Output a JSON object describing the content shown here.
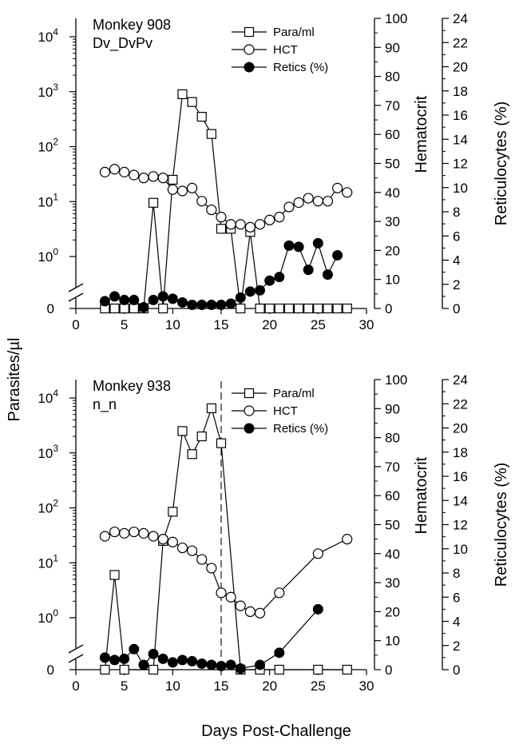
{
  "figure": {
    "ylabel_left": "Parasites/µl",
    "xlabel": "Days Post-Challenge",
    "ylabel_hct": "Hematocrit",
    "ylabel_retic": "Reticulocytes (%)"
  },
  "chart_data": [
    {
      "type": "line",
      "title": "Monkey 908",
      "subtitle": "Dv_DvPv",
      "xlabel": "Days Post-Challenge",
      "ylabel": "Parasites/µl",
      "y2label": "Hematocrit",
      "y3label": "Reticulocytes (%)",
      "xlim": [
        0,
        30
      ],
      "xticks": [
        "0",
        "5",
        "10",
        "15",
        "20",
        "25",
        "30"
      ],
      "ylog_ticks": [
        "10^0",
        "10^1",
        "10^2",
        "10^3",
        "10^4"
      ],
      "ylim_log_exponent": [
        0,
        4
      ],
      "y_zero_label": "0",
      "y2lim": [
        0,
        100
      ],
      "y2ticks": [
        "0",
        "10",
        "20",
        "30",
        "40",
        "50",
        "60",
        "70",
        "80",
        "90",
        "100"
      ],
      "y3lim": [
        0,
        24
      ],
      "y3ticks": [
        "0",
        "2",
        "4",
        "6",
        "8",
        "10",
        "12",
        "14",
        "16",
        "18",
        "20",
        "22",
        "24"
      ],
      "legend_position": "top-right",
      "series": [
        {
          "name": "Para/ml",
          "axis": "parasites",
          "marker": "open-square",
          "x": [
            3,
            4,
            5,
            6,
            7,
            8,
            9,
            10,
            11,
            12,
            13,
            14,
            15,
            16,
            17,
            18,
            19,
            20,
            21,
            22,
            23,
            24,
            25,
            26,
            27,
            28
          ],
          "y": [
            0,
            0,
            0,
            0,
            0,
            9.5,
            0,
            25,
            900,
            650,
            350,
            170,
            3.2,
            3.2,
            0,
            2.8,
            0,
            0,
            0,
            0,
            0,
            0,
            0,
            0,
            0,
            0
          ]
        },
        {
          "name": "HCT",
          "axis": "hematocrit",
          "marker": "open-circle",
          "x": [
            3,
            4,
            5,
            6,
            7,
            8,
            9,
            10,
            11,
            12,
            13,
            14,
            15,
            16,
            17,
            18,
            19,
            20,
            21,
            22,
            23,
            24,
            25,
            26,
            27,
            28
          ],
          "y": [
            47,
            48,
            47,
            46,
            45,
            45.5,
            45,
            41,
            40.5,
            41.5,
            37,
            34,
            31.5,
            29,
            29,
            28,
            29,
            30.5,
            31.5,
            35,
            36.5,
            38,
            37,
            37,
            41.5,
            40
          ]
        },
        {
          "name": "Retics (%)",
          "axis": "reticulocytes",
          "marker": "filled-circle",
          "x": [
            3,
            4,
            5,
            6,
            7,
            8,
            9,
            10,
            11,
            12,
            13,
            14,
            15,
            16,
            17,
            18,
            19,
            20,
            21,
            22,
            23,
            24,
            25,
            26,
            27,
            28
          ],
          "y": [
            0.6,
            1.0,
            0.7,
            0.7,
            0.1,
            0.7,
            1.0,
            0.8,
            0.5,
            0.3,
            0.3,
            0.3,
            0.3,
            0.4,
            0.9,
            1.4,
            1.5,
            2.3,
            2.6,
            5.2,
            5.1,
            3.2,
            5.4,
            2.8,
            4.4,
            null
          ]
        }
      ]
    },
    {
      "type": "line",
      "title": "Monkey 938",
      "subtitle": "n_n",
      "xlabel": "Days Post-Challenge",
      "ylabel": "Parasites/µl",
      "y2label": "Hematocrit",
      "y3label": "Reticulocytes (%)",
      "xlim": [
        0,
        30
      ],
      "xticks": [
        "0",
        "5",
        "10",
        "15",
        "20",
        "25",
        "30"
      ],
      "ylog_ticks": [
        "10^0",
        "10^1",
        "10^2",
        "10^3",
        "10^4"
      ],
      "ylim_log_exponent": [
        0,
        4
      ],
      "y_zero_label": "0",
      "y2lim": [
        0,
        100
      ],
      "y2ticks": [
        "0",
        "10",
        "20",
        "30",
        "40",
        "50",
        "60",
        "70",
        "80",
        "90",
        "100"
      ],
      "y3lim": [
        0,
        24
      ],
      "y3ticks": [
        "0",
        "2",
        "4",
        "6",
        "8",
        "10",
        "12",
        "14",
        "16",
        "18",
        "20",
        "22",
        "24"
      ],
      "legend_position": "top-right",
      "vline_x": 15,
      "series": [
        {
          "name": "Para/ml",
          "axis": "parasites",
          "marker": "open-square",
          "x": [
            3,
            4,
            5,
            8,
            9,
            10,
            11,
            12,
            13,
            14,
            15,
            17,
            19,
            21,
            25,
            28
          ],
          "y": [
            0,
            6,
            0,
            0,
            25,
            85,
            2500,
            950,
            2000,
            6500,
            1500,
            0,
            0,
            0,
            0,
            0
          ]
        },
        {
          "name": "HCT",
          "axis": "hematocrit",
          "marker": "open-circle",
          "x": [
            3,
            4,
            5,
            6,
            7,
            8,
            9,
            10,
            11,
            12,
            13,
            14,
            15,
            16,
            17,
            18,
            19,
            21,
            25,
            28
          ],
          "y": [
            46,
            47.5,
            47,
            47.5,
            47,
            46,
            45,
            44,
            42,
            41,
            38,
            35,
            26.5,
            25,
            22,
            20,
            19.5,
            26.5,
            40,
            45
          ]
        },
        {
          "name": "Retics (%)",
          "axis": "reticulocytes",
          "marker": "filled-circle",
          "x": [
            3,
            4,
            5,
            6,
            7,
            8,
            9,
            10,
            11,
            12,
            13,
            14,
            15,
            16,
            17,
            19,
            21,
            25
          ],
          "y": [
            1.0,
            0.8,
            0.9,
            1.7,
            0.4,
            1.3,
            0.9,
            0.6,
            0.8,
            0.7,
            0.5,
            0.4,
            0.3,
            0.4,
            0.1,
            0.4,
            1.4,
            5.0
          ]
        }
      ]
    }
  ]
}
